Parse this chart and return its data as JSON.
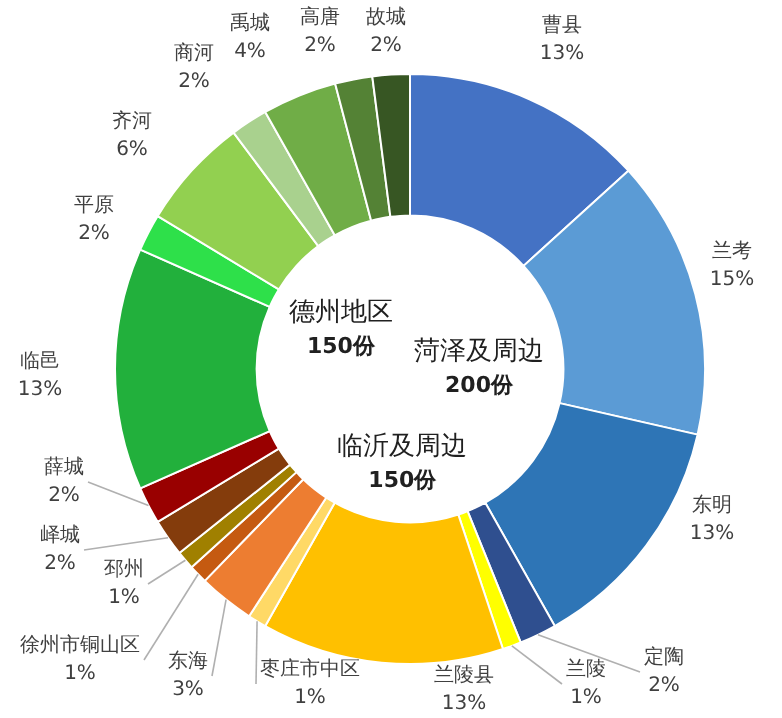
{
  "chart_data": {
    "type": "donut",
    "categories": [
      "曹县",
      "兰考",
      "东明",
      "定陶",
      "兰陵",
      "兰陵县",
      "枣庄市中区",
      "东海",
      "徐州市铜山区",
      "邳州",
      "峄城",
      "薛城",
      "临邑",
      "平原",
      "齐河",
      "商河",
      "禹城",
      "高唐",
      "故城"
    ],
    "values": [
      13,
      15,
      13,
      2,
      1,
      13,
      1,
      3,
      1,
      1,
      2,
      2,
      13,
      2,
      6,
      2,
      4,
      2,
      2
    ],
    "value_labels": [
      "13%",
      "15%",
      "13%",
      "2%",
      "1%",
      "13%",
      "1%",
      "3%",
      "1%",
      "1%",
      "2%",
      "2%",
      "13%",
      "2%",
      "6%",
      "2%",
      "4%",
      "2%",
      "2%"
    ],
    "colors": [
      "#4472c4",
      "#5b9bd5",
      "#2e75b6",
      "#2f4f8f",
      "#ffff00",
      "#ffc000",
      "#ffd966",
      "#ed7d31",
      "#c55a11",
      "#a08000",
      "#843c0c",
      "#990000",
      "#22b03c",
      "#2ee04a",
      "#92d050",
      "#a9d18e",
      "#70ad47",
      "#548235",
      "#375623"
    ],
    "annotations": [
      "菏泽及周边\n200份",
      "德州地区\n150份",
      "临沂及周边\n150份"
    ],
    "legend": false
  }
}
